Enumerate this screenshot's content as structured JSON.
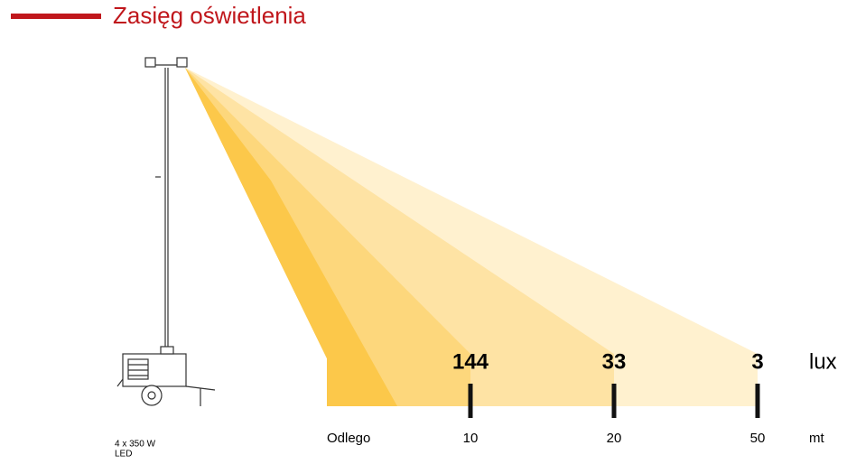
{
  "header": {
    "title": "Zasięg oświetlenia"
  },
  "measurements": [
    {
      "lux": 144,
      "distance": 10
    },
    {
      "lux": 33,
      "distance": 20
    },
    {
      "lux": 3,
      "distance": 50
    }
  ],
  "lux_unit": "lux",
  "distance_label": "Odlego",
  "distance_unit": "mt",
  "device": {
    "power": "4 x 350 W",
    "type": "LED"
  }
}
